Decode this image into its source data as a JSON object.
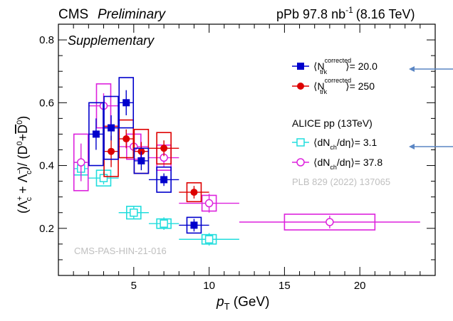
{
  "header": {
    "title_main": "CMS",
    "title_italic": "Preliminary",
    "lumi_prefix": "pPb 97.8 nb",
    "lumi_exp": "-1",
    "lumi_suffix": "(8.16 TeV)",
    "supplementary": "Supplementary",
    "pas_tag": "CMS-PAS-HIN-21-016",
    "ref_tag": "PLB 829 (2022) 137065",
    "alice_header": "ALICE pp (13TeV)"
  },
  "chart_data": {
    "type": "scatter",
    "xlabel": "p_T (GeV)",
    "ylabel": "(Λc+ + Λc−)/(D0 + D̄0)",
    "xlim": [
      0,
      25
    ],
    "ylim": [
      0.05,
      0.85
    ],
    "x_ticks": [
      5,
      10,
      15,
      20
    ],
    "y_ticks": [
      0.2,
      0.4,
      0.6,
      0.8
    ],
    "series": [
      {
        "name": "<N_trk^corrected> = 20.0",
        "legend_main": "⟨N",
        "legend_sup": "corrected",
        "legend_sub": "trk",
        "legend_value": "⟩= 20.0",
        "color": "#0000cc",
        "marker": "square-filled",
        "points": [
          {
            "x": 2.5,
            "y": 0.5,
            "xl": 2.0,
            "xh": 3.0,
            "el": 0.05,
            "eh": 0.05,
            "sl": 0.1,
            "sh": 0.1
          },
          {
            "x": 3.5,
            "y": 0.52,
            "xl": 3.0,
            "xh": 4.0,
            "el": 0.04,
            "eh": 0.04,
            "sl": 0.1,
            "sh": 0.1
          },
          {
            "x": 4.5,
            "y": 0.6,
            "xl": 4.0,
            "xh": 5.0,
            "el": 0.04,
            "eh": 0.04,
            "sl": 0.08,
            "sh": 0.08
          },
          {
            "x": 5.5,
            "y": 0.415,
            "xl": 5.0,
            "xh": 6.0,
            "el": 0.03,
            "eh": 0.03,
            "sl": 0.04,
            "sh": 0.04
          },
          {
            "x": 7.0,
            "y": 0.355,
            "xl": 6.0,
            "xh": 8.0,
            "el": 0.02,
            "eh": 0.02,
            "sl": 0.04,
            "sh": 0.04
          },
          {
            "x": 9.0,
            "y": 0.21,
            "xl": 8.0,
            "xh": 10.0,
            "el": 0.02,
            "eh": 0.02,
            "sl": 0.025,
            "sh": 0.025
          }
        ]
      },
      {
        "name": "<N_trk^corrected> = 250",
        "legend_main": "⟨N",
        "legend_sup": "corrected",
        "legend_sub": "trk",
        "legend_value": "⟩= 250",
        "color": "#dd0000",
        "marker": "circle-filled",
        "points": [
          {
            "x": 3.5,
            "y": 0.445,
            "xl": 3.0,
            "xh": 4.0,
            "el": 0.05,
            "eh": 0.05,
            "sl": 0.08,
            "sh": 0.08
          },
          {
            "x": 4.5,
            "y": 0.485,
            "xl": 4.0,
            "xh": 5.0,
            "el": 0.03,
            "eh": 0.03,
            "sl": 0.06,
            "sh": 0.06
          },
          {
            "x": 5.5,
            "y": 0.445,
            "xl": 5.0,
            "xh": 6.0,
            "el": 0.03,
            "eh": 0.03,
            "sl": 0.07,
            "sh": 0.07
          },
          {
            "x": 7.0,
            "y": 0.455,
            "xl": 6.0,
            "xh": 8.0,
            "el": 0.025,
            "eh": 0.025,
            "sl": 0.05,
            "sh": 0.05
          },
          {
            "x": 9.0,
            "y": 0.315,
            "xl": 8.0,
            "xh": 10.0,
            "el": 0.02,
            "eh": 0.02,
            "sl": 0.03,
            "sh": 0.03
          }
        ]
      },
      {
        "name": "<dN_ch/dη> = 3.1",
        "legend_main": "⟨dN",
        "legend_sub": "ch",
        "legend_value": "/dη⟩= 3.1",
        "color": "#22dddd",
        "marker": "square-open",
        "points": [
          {
            "x": 1.5,
            "y": 0.39,
            "xl": 1.0,
            "xh": 2.0,
            "el": 0.03,
            "eh": 0.03,
            "sl": 0.02,
            "sh": 0.02
          },
          {
            "x": 3.0,
            "y": 0.36,
            "xl": 2.0,
            "xh": 4.0,
            "el": 0.02,
            "eh": 0.02,
            "sl": 0.025,
            "sh": 0.025
          },
          {
            "x": 5.0,
            "y": 0.25,
            "xl": 4.0,
            "xh": 6.0,
            "el": 0.02,
            "eh": 0.02,
            "sl": 0.02,
            "sh": 0.02
          },
          {
            "x": 7.0,
            "y": 0.215,
            "xl": 6.0,
            "xh": 8.0,
            "el": 0.02,
            "eh": 0.02,
            "sl": 0.015,
            "sh": 0.015
          },
          {
            "x": 10.0,
            "y": 0.165,
            "xl": 8.0,
            "xh": 12.0,
            "el": 0.02,
            "eh": 0.02,
            "sl": 0.015,
            "sh": 0.015
          }
        ]
      },
      {
        "name": "<dN_ch/dη> = 37.8",
        "legend_main": "⟨dN",
        "legend_sub": "ch",
        "legend_value": "/dη⟩= 37.8",
        "color": "#dd22dd",
        "marker": "circle-open",
        "points": [
          {
            "x": 1.5,
            "y": 0.41,
            "xl": 1.0,
            "xh": 2.0,
            "el": 0.06,
            "eh": 0.06,
            "sl": 0.09,
            "sh": 0.09
          },
          {
            "x": 3.0,
            "y": 0.59,
            "xl": 2.0,
            "xh": 4.0,
            "el": 0.04,
            "eh": 0.04,
            "sl": 0.07,
            "sh": 0.07
          },
          {
            "x": 5.0,
            "y": 0.46,
            "xl": 4.0,
            "xh": 6.0,
            "el": 0.03,
            "eh": 0.03,
            "sl": 0.04,
            "sh": 0.04
          },
          {
            "x": 7.0,
            "y": 0.425,
            "xl": 6.0,
            "xh": 8.0,
            "el": 0.03,
            "eh": 0.03,
            "sl": 0.04,
            "sh": 0.04
          },
          {
            "x": 10.0,
            "y": 0.28,
            "xl": 8.0,
            "xh": 12.0,
            "el": 0.03,
            "eh": 0.03,
            "sl": 0.025,
            "sh": 0.025
          },
          {
            "x": 18.0,
            "y": 0.22,
            "xl": 12.0,
            "xh": 24.0,
            "el": 0.02,
            "eh": 0.02,
            "sl": 0.025,
            "sh": 0.025
          }
        ]
      }
    ],
    "arrow_color": "#5a86c4"
  }
}
